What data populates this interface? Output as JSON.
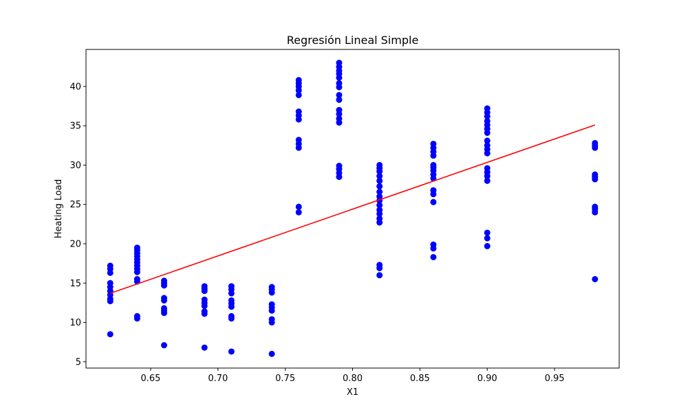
{
  "chart_data": {
    "type": "scatter",
    "title": "Regresión Lineal Simple",
    "xlabel": "X1",
    "ylabel": "Heating Load",
    "xlim": [
      0.602,
      0.998
    ],
    "ylim": [
      4.2,
      44.7
    ],
    "xticks": [
      0.65,
      0.7,
      0.75,
      0.8,
      0.85,
      0.9,
      0.95
    ],
    "xtick_labels": [
      "0.65",
      "0.70",
      "0.75",
      "0.80",
      "0.85",
      "0.90",
      "0.95"
    ],
    "yticks": [
      5,
      10,
      15,
      20,
      25,
      30,
      35,
      40
    ],
    "ytick_labels": [
      "5",
      "10",
      "15",
      "20",
      "25",
      "30",
      "35",
      "40"
    ],
    "grid": false,
    "colors": {
      "points": "#0000ff",
      "line": "#ff0000"
    },
    "series": [
      {
        "type": "scatter",
        "points": [
          [
            0.62,
            8.5
          ],
          [
            0.62,
            12.7
          ],
          [
            0.62,
            13.0
          ],
          [
            0.62,
            13.5
          ],
          [
            0.62,
            14.0
          ],
          [
            0.62,
            14.5
          ],
          [
            0.62,
            15.0
          ],
          [
            0.62,
            16.3
          ],
          [
            0.62,
            16.8
          ],
          [
            0.62,
            17.2
          ],
          [
            0.64,
            10.5
          ],
          [
            0.64,
            10.8
          ],
          [
            0.64,
            15.2
          ],
          [
            0.64,
            15.5
          ],
          [
            0.64,
            16.4
          ],
          [
            0.64,
            16.8
          ],
          [
            0.64,
            17.2
          ],
          [
            0.64,
            17.6
          ],
          [
            0.64,
            18.0
          ],
          [
            0.64,
            18.4
          ],
          [
            0.64,
            18.8
          ],
          [
            0.64,
            19.2
          ],
          [
            0.64,
            19.5
          ],
          [
            0.66,
            7.1
          ],
          [
            0.66,
            11.2
          ],
          [
            0.66,
            11.5
          ],
          [
            0.66,
            11.8
          ],
          [
            0.66,
            12.8
          ],
          [
            0.66,
            13.1
          ],
          [
            0.66,
            14.7
          ],
          [
            0.66,
            15.0
          ],
          [
            0.66,
            15.3
          ],
          [
            0.69,
            6.8
          ],
          [
            0.69,
            11.1
          ],
          [
            0.69,
            11.4
          ],
          [
            0.69,
            12.1
          ],
          [
            0.69,
            12.5
          ],
          [
            0.69,
            12.9
          ],
          [
            0.69,
            14.0
          ],
          [
            0.69,
            14.3
          ],
          [
            0.69,
            14.6
          ],
          [
            0.71,
            6.3
          ],
          [
            0.71,
            10.5
          ],
          [
            0.71,
            10.8
          ],
          [
            0.71,
            12.0
          ],
          [
            0.71,
            12.4
          ],
          [
            0.71,
            12.8
          ],
          [
            0.71,
            13.7
          ],
          [
            0.71,
            14.2
          ],
          [
            0.71,
            14.6
          ],
          [
            0.74,
            6.0
          ],
          [
            0.74,
            10.0
          ],
          [
            0.74,
            10.4
          ],
          [
            0.74,
            11.5
          ],
          [
            0.74,
            11.9
          ],
          [
            0.74,
            12.3
          ],
          [
            0.74,
            13.8
          ],
          [
            0.74,
            14.2
          ],
          [
            0.74,
            14.5
          ],
          [
            0.76,
            24.0
          ],
          [
            0.76,
            24.7
          ],
          [
            0.76,
            32.2
          ],
          [
            0.76,
            32.7
          ],
          [
            0.76,
            33.2
          ],
          [
            0.76,
            35.8
          ],
          [
            0.76,
            36.3
          ],
          [
            0.76,
            36.8
          ],
          [
            0.76,
            38.9
          ],
          [
            0.76,
            39.5
          ],
          [
            0.76,
            40.0
          ],
          [
            0.76,
            40.4
          ],
          [
            0.76,
            40.8
          ],
          [
            0.79,
            28.5
          ],
          [
            0.79,
            29.0
          ],
          [
            0.79,
            29.5
          ],
          [
            0.79,
            29.9
          ],
          [
            0.79,
            35.4
          ],
          [
            0.79,
            35.9
          ],
          [
            0.79,
            36.5
          ],
          [
            0.79,
            37.0
          ],
          [
            0.79,
            38.3
          ],
          [
            0.79,
            38.9
          ],
          [
            0.79,
            39.9
          ],
          [
            0.79,
            40.4
          ],
          [
            0.79,
            41.1
          ],
          [
            0.79,
            41.6
          ],
          [
            0.79,
            42.0
          ],
          [
            0.79,
            42.5
          ],
          [
            0.79,
            43.0
          ],
          [
            0.82,
            16.0
          ],
          [
            0.82,
            16.9
          ],
          [
            0.82,
            17.3
          ],
          [
            0.82,
            22.7
          ],
          [
            0.82,
            23.2
          ],
          [
            0.82,
            23.8
          ],
          [
            0.82,
            24.3
          ],
          [
            0.82,
            24.9
          ],
          [
            0.82,
            25.5
          ],
          [
            0.82,
            26.0
          ],
          [
            0.82,
            26.6
          ],
          [
            0.82,
            27.3
          ],
          [
            0.82,
            28.0
          ],
          [
            0.82,
            28.6
          ],
          [
            0.82,
            29.2
          ],
          [
            0.82,
            29.6
          ],
          [
            0.82,
            30.0
          ],
          [
            0.86,
            18.3
          ],
          [
            0.86,
            19.4
          ],
          [
            0.86,
            19.9
          ],
          [
            0.86,
            25.3
          ],
          [
            0.86,
            26.3
          ],
          [
            0.86,
            26.8
          ],
          [
            0.86,
            28.3
          ],
          [
            0.86,
            28.8
          ],
          [
            0.86,
            29.3
          ],
          [
            0.86,
            29.7
          ],
          [
            0.86,
            30.0
          ],
          [
            0.86,
            31.2
          ],
          [
            0.86,
            31.7
          ],
          [
            0.86,
            32.2
          ],
          [
            0.86,
            32.7
          ],
          [
            0.9,
            19.7
          ],
          [
            0.9,
            20.7
          ],
          [
            0.9,
            21.4
          ],
          [
            0.9,
            28.0
          ],
          [
            0.9,
            28.6
          ],
          [
            0.9,
            29.1
          ],
          [
            0.9,
            29.6
          ],
          [
            0.9,
            31.5
          ],
          [
            0.9,
            32.0
          ],
          [
            0.9,
            32.5
          ],
          [
            0.9,
            33.1
          ],
          [
            0.9,
            34.1
          ],
          [
            0.9,
            34.6
          ],
          [
            0.9,
            35.1
          ],
          [
            0.9,
            35.6
          ],
          [
            0.9,
            36.2
          ],
          [
            0.9,
            36.7
          ],
          [
            0.9,
            37.2
          ],
          [
            0.98,
            15.5
          ],
          [
            0.98,
            24.0
          ],
          [
            0.98,
            24.4
          ],
          [
            0.98,
            24.7
          ],
          [
            0.98,
            28.2
          ],
          [
            0.98,
            28.5
          ],
          [
            0.98,
            28.8
          ],
          [
            0.98,
            32.2
          ],
          [
            0.98,
            32.5
          ],
          [
            0.98,
            32.8
          ]
        ]
      },
      {
        "type": "line",
        "x": [
          0.62,
          0.98
        ],
        "y": [
          13.7,
          35.1
        ]
      }
    ]
  }
}
